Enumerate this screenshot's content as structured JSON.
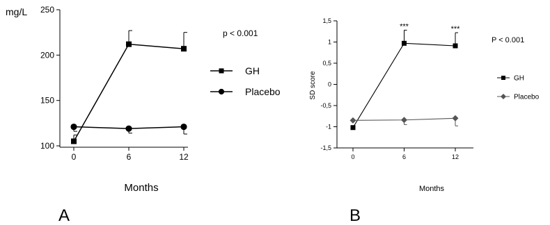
{
  "chart_data": [
    {
      "type": "line",
      "panel_label": "A",
      "ylabel": "mg/L",
      "xlabel": "Months",
      "annotation": "p < 0.001",
      "x": [
        0,
        6,
        12
      ],
      "ylim": [
        100,
        250
      ],
      "yticks": [
        "100",
        "150",
        "200",
        "250"
      ],
      "xticks": [
        "0",
        "6",
        "12"
      ],
      "series": [
        {
          "name": "GH",
          "marker": "square",
          "values": [
            105,
            212,
            207
          ],
          "error_upper": [
            112,
            227,
            225
          ],
          "color": "#000000"
        },
        {
          "name": "Placebo",
          "marker": "circle",
          "values": [
            121,
            119,
            121
          ],
          "error_lower": [
            116,
            114,
            113
          ],
          "color": "#000000"
        }
      ],
      "legend_placement": "right"
    },
    {
      "type": "line",
      "panel_label": "B",
      "ylabel": "SD  score",
      "xlabel": "Months",
      "annotation": "P < 0.001",
      "x": [
        0,
        6,
        12
      ],
      "ylim": [
        -1.5,
        1.5
      ],
      "yticks": [
        "-1,5",
        "-1",
        "-0,5",
        "0",
        "0,5",
        "1",
        "1,5"
      ],
      "xticks": [
        "0",
        "6",
        "12"
      ],
      "significance_markers": [
        "",
        "***",
        "***"
      ],
      "series": [
        {
          "name": "GH",
          "marker": "square",
          "values": [
            -1.02,
            0.97,
            0.91
          ],
          "error_upper": [
            -1.02,
            1.28,
            1.22
          ],
          "color": "#000000"
        },
        {
          "name": "Placebo",
          "marker": "diamond",
          "values": [
            -0.85,
            -0.84,
            -0.8
          ],
          "error_lower": [
            -0.85,
            -0.95,
            -0.98
          ],
          "color": "#555555"
        }
      ],
      "legend_placement": "right"
    }
  ]
}
